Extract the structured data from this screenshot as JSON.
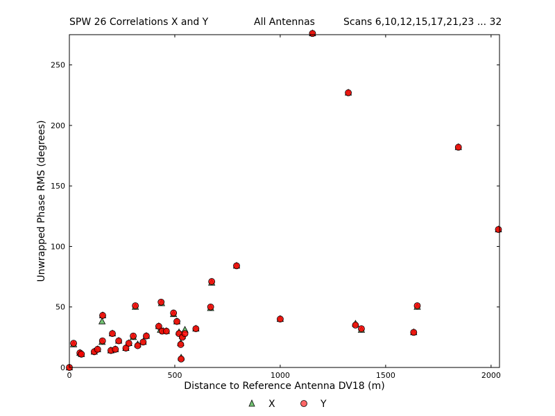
{
  "header": {
    "left": "SPW 26 Correlations X and Y",
    "center": "All Antennas",
    "right": "Scans 6,10,12,15,17,21,23 ... 32"
  },
  "chart_data": {
    "type": "scatter",
    "title": "",
    "xlabel": "Distance to Reference Antenna DV18 (m)",
    "ylabel": "Unwrapped Phase RMS (degrees)",
    "xlim": [
      0,
      2040
    ],
    "ylim": [
      0,
      275
    ],
    "xticks": [
      0,
      500,
      1000,
      1500,
      2000
    ],
    "yticks": [
      0,
      50,
      100,
      150,
      200,
      250
    ],
    "grid": false,
    "legend_position": "bottom-center",
    "series": [
      {
        "name": "X",
        "marker": "triangle",
        "color": "#5cb85c",
        "points": [
          [
            0,
            0
          ],
          [
            20,
            19
          ],
          [
            50,
            12
          ],
          [
            57,
            11
          ],
          [
            118,
            13
          ],
          [
            134,
            15
          ],
          [
            155,
            38
          ],
          [
            155,
            21
          ],
          [
            158,
            43
          ],
          [
            197,
            14
          ],
          [
            204,
            28
          ],
          [
            218,
            15
          ],
          [
            234,
            22
          ],
          [
            268,
            16
          ],
          [
            282,
            20
          ],
          [
            303,
            25
          ],
          [
            313,
            50
          ],
          [
            324,
            19
          ],
          [
            350,
            21
          ],
          [
            365,
            26
          ],
          [
            424,
            34
          ],
          [
            432,
            31
          ],
          [
            437,
            53
          ],
          [
            445,
            30
          ],
          [
            460,
            30
          ],
          [
            494,
            44
          ],
          [
            510,
            38
          ],
          [
            520,
            29
          ],
          [
            528,
            20
          ],
          [
            530,
            8
          ],
          [
            536,
            26
          ],
          [
            548,
            31
          ],
          [
            600,
            32
          ],
          [
            670,
            49
          ],
          [
            675,
            70
          ],
          [
            793,
            84
          ],
          [
            1000,
            40
          ],
          [
            1153,
            276
          ],
          [
            1323,
            227
          ],
          [
            1357,
            36
          ],
          [
            1385,
            31
          ],
          [
            1633,
            29
          ],
          [
            1650,
            50
          ],
          [
            1845,
            182
          ],
          [
            2035,
            114
          ]
        ]
      },
      {
        "name": "Y",
        "marker": "circle",
        "color": "#ff0000",
        "points": [
          [
            0,
            0
          ],
          [
            20,
            20
          ],
          [
            50,
            12
          ],
          [
            57,
            11
          ],
          [
            118,
            13
          ],
          [
            134,
            15
          ],
          [
            157,
            22
          ],
          [
            158,
            43
          ],
          [
            197,
            14
          ],
          [
            204,
            28
          ],
          [
            218,
            15
          ],
          [
            234,
            22
          ],
          [
            268,
            16
          ],
          [
            282,
            20
          ],
          [
            303,
            26
          ],
          [
            313,
            51
          ],
          [
            324,
            18
          ],
          [
            350,
            21
          ],
          [
            365,
            26
          ],
          [
            424,
            34
          ],
          [
            435,
            54
          ],
          [
            440,
            30
          ],
          [
            460,
            30
          ],
          [
            494,
            45
          ],
          [
            510,
            38
          ],
          [
            520,
            28
          ],
          [
            528,
            19
          ],
          [
            530,
            7
          ],
          [
            536,
            25
          ],
          [
            548,
            28
          ],
          [
            600,
            32
          ],
          [
            670,
            50
          ],
          [
            675,
            71
          ],
          [
            793,
            84
          ],
          [
            1000,
            40
          ],
          [
            1153,
            276
          ],
          [
            1323,
            227
          ],
          [
            1357,
            35
          ],
          [
            1385,
            32
          ],
          [
            1633,
            29
          ],
          [
            1650,
            51
          ],
          [
            1845,
            182
          ],
          [
            2035,
            114
          ]
        ]
      }
    ]
  }
}
